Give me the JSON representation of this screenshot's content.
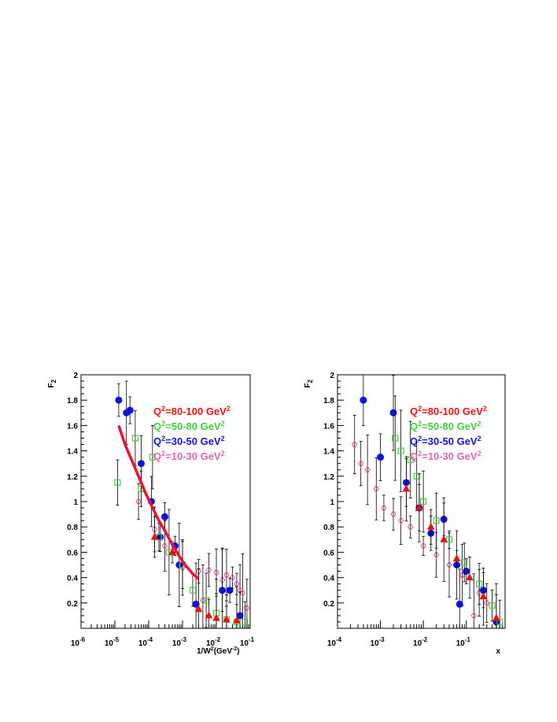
{
  "colors": {
    "q80_100": "#ee1111",
    "q50_80": "#44cc44",
    "q30_50": "#1111dd",
    "q10_30": "#dd66aa",
    "fit": "#ee1133",
    "errorbar": "#000000"
  },
  "chart_data": [
    {
      "type": "scatter",
      "xscale": "log",
      "xlim": [
        1e-06,
        0.1
      ],
      "ylim": [
        0,
        2
      ],
      "ylabel": "F",
      "ylabel_sub": "2",
      "xlabel": "1/W",
      "xlabel_rest": "(GeV",
      "xlabel_exp": "-2",
      "xlabel_close": ")",
      "x_ticks": [
        {
          "m": "10",
          "e": "-6"
        },
        {
          "m": "10",
          "e": "-5"
        },
        {
          "m": "10",
          "e": "-4"
        },
        {
          "m": "10",
          "e": "-3"
        },
        {
          "m": "10",
          "e": "-2"
        },
        {
          "m": "10",
          "e": "-1"
        }
      ],
      "y_ticks": [
        "0.2",
        "0.4",
        "0.6",
        "0.8",
        "1",
        "1.2",
        "1.4",
        "1.6",
        "1.8",
        "2"
      ],
      "legend": [
        {
          "q": "Q",
          "sup": "2",
          "text": "=80-100 GeV",
          "unit_sup": "2",
          "color": "#ee1111"
        },
        {
          "q": "Q",
          "sup": "2",
          "text": "=50-80 GeV",
          "unit_sup": "2",
          "color": "#44cc44"
        },
        {
          "q": "Q",
          "sup": "2",
          "text": "=30-50 GeV",
          "unit_sup": "2",
          "color": "#1111dd"
        },
        {
          "q": "Q",
          "sup": "2",
          "text": "=10-30 GeV",
          "unit_sup": "2",
          "color": "#dd66aa"
        }
      ],
      "fit": {
        "x": [
          1.3e-05,
          2e-05,
          3e-05,
          5e-05,
          8e-05,
          0.00012,
          0.0002,
          0.0003,
          0.0005,
          0.0008,
          0.0012,
          0.002,
          0.003
        ],
        "y": [
          1.6,
          1.45,
          1.34,
          1.2,
          1.07,
          0.97,
          0.85,
          0.77,
          0.66,
          0.57,
          0.5,
          0.43,
          0.39
        ]
      },
      "series": [
        {
          "key": "q10_30",
          "marker": "diamond",
          "x": [
            0.0003,
            0.001,
            0.003,
            0.006,
            0.01,
            0.02,
            0.04,
            0.06,
            0.08,
            0.00015,
            5e-05,
            0.004,
            0.015,
            0.03,
            0.05
          ],
          "y": [
            0.65,
            0.48,
            0.45,
            0.46,
            0.44,
            0.42,
            0.35,
            0.28,
            0.16,
            0.78,
            1.0,
            0.22,
            0.38,
            0.4,
            0.3
          ]
        },
        {
          "key": "q30_50",
          "marker": "circle",
          "x": [
            1.3e-05,
            2.2e-05,
            2.8e-05,
            6e-05,
            0.00012,
            0.0003,
            0.0006,
            0.0025,
            0.015,
            0.025,
            0.05,
            0.0008,
            0.00022
          ],
          "y": [
            1.8,
            1.7,
            1.72,
            1.3,
            1.0,
            0.88,
            0.65,
            0.19,
            0.3,
            0.3,
            0.1,
            0.5,
            0.72
          ]
        },
        {
          "key": "q50_80",
          "marker": "square",
          "x": [
            1.2e-05,
            4e-05,
            0.00013,
            6e-05,
            0.0002,
            0.0004,
            0.001,
            0.002,
            0.005,
            0.01,
            0.02,
            0.04,
            0.07
          ],
          "y": [
            1.15,
            1.5,
            1.35,
            1.1,
            0.72,
            0.6,
            0.5,
            0.3,
            0.22,
            0.12,
            0.07,
            0.05,
            0.05
          ]
        },
        {
          "key": "q80_100",
          "marker": "triangle",
          "x": [
            0.00015,
            0.0005,
            0.003,
            0.006,
            0.01,
            0.02,
            0.04
          ],
          "y": [
            0.72,
            0.6,
            0.15,
            0.1,
            0.08,
            0.07,
            0.06
          ]
        }
      ]
    },
    {
      "type": "scatter",
      "xscale": "log",
      "xlim": [
        0.0001,
        0.8
      ],
      "ylim": [
        0,
        2
      ],
      "ylabel": "F",
      "ylabel_sub": "2",
      "xlabel": "x",
      "x_ticks": [
        {
          "m": "10",
          "e": "-4"
        },
        {
          "m": "10",
          "e": "-3"
        },
        {
          "m": "10",
          "e": "-2"
        },
        {
          "m": "10",
          "e": "-1"
        }
      ],
      "y_ticks": [
        "0.2",
        "0.4",
        "0.6",
        "0.8",
        "1",
        "1.2",
        "1.4",
        "1.6",
        "1.8",
        "2"
      ],
      "legend": [
        {
          "q": "Q",
          "sup": "2",
          "text": "=80-100 GeV",
          "unit_sup": "2",
          "color": "#ee1111"
        },
        {
          "q": "Q",
          "sup": "2",
          "text": "=50-80 GeV",
          "unit_sup": "2",
          "color": "#44cc44"
        },
        {
          "q": "Q",
          "sup": "2",
          "text": "=30-50 GeV",
          "unit_sup": "2",
          "color": "#1111dd"
        },
        {
          "q": "Q",
          "sup": "2",
          "text": "=10-30 GeV",
          "unit_sup": "2",
          "color": "#dd66aa"
        }
      ],
      "series": [
        {
          "key": "q10_30",
          "marker": "diamond",
          "x": [
            0.00025,
            0.00035,
            0.0005,
            0.0008,
            0.0012,
            0.002,
            0.003,
            0.005,
            0.01,
            0.02,
            0.04,
            0.08,
            0.15,
            0.3,
            0.2
          ],
          "y": [
            1.45,
            1.3,
            1.25,
            1.1,
            0.95,
            0.9,
            0.85,
            0.8,
            0.65,
            0.58,
            0.5,
            0.42,
            0.1,
            0.2,
            0.28
          ]
        },
        {
          "key": "q30_50",
          "marker": "circle",
          "x": [
            0.0004,
            0.001,
            0.002,
            0.004,
            0.008,
            0.015,
            0.03,
            0.06,
            0.1,
            0.25,
            0.07,
            0.5
          ],
          "y": [
            1.8,
            1.35,
            1.7,
            1.15,
            0.95,
            0.75,
            0.86,
            0.5,
            0.45,
            0.3,
            0.19,
            0.05
          ]
        },
        {
          "key": "q50_80",
          "marker": "square",
          "x": [
            0.0022,
            0.003,
            0.005,
            0.007,
            0.01,
            0.02,
            0.04,
            0.09,
            0.2,
            0.4,
            0.6
          ],
          "y": [
            1.5,
            1.4,
            1.33,
            1.2,
            1.0,
            0.85,
            0.7,
            0.52,
            0.35,
            0.18,
            0.05
          ]
        },
        {
          "key": "q80_100",
          "marker": "triangle",
          "x": [
            0.004,
            0.008,
            0.015,
            0.03,
            0.06,
            0.12,
            0.25,
            0.5
          ],
          "y": [
            1.1,
            0.95,
            0.8,
            0.7,
            0.55,
            0.4,
            0.25,
            0.08
          ]
        }
      ]
    }
  ]
}
